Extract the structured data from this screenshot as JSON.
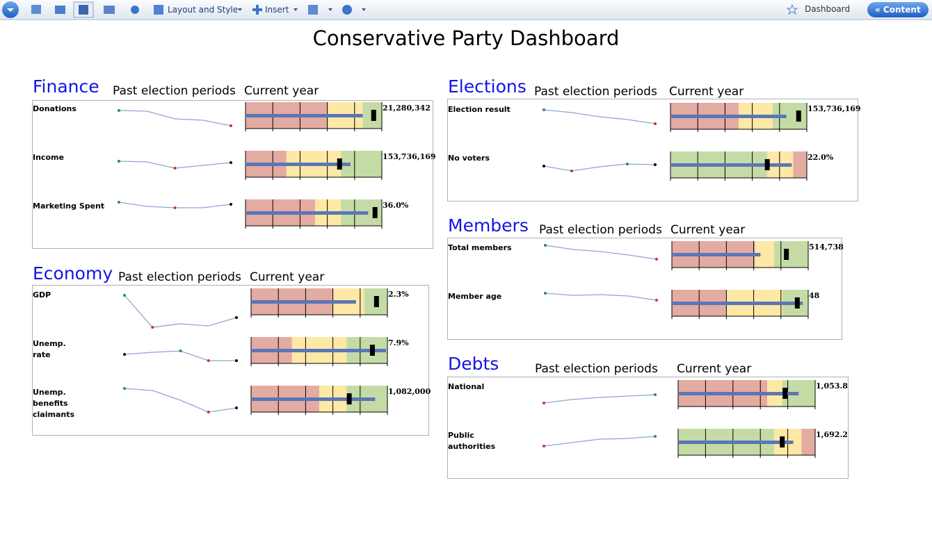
{
  "toolbar": {
    "layout": "Layout and Style",
    "insert": "Insert",
    "dashboard": "Dashboard",
    "content": "« Content"
  },
  "title": "Conservative Party Dashboard",
  "scale": {
    "spark_lim": [
      0,
      60
    ],
    "bullet_lim": [
      0,
      100
    ],
    "bullet_ticks": [
      0,
      20,
      40,
      60,
      80,
      100
    ]
  },
  "panels": [
    {
      "title": "Finance",
      "past": "Past election periods",
      "current": "Current year",
      "rows": [
        {
          "label": "Donations",
          "value": "21,280,342",
          "spark": [
            46,
            45,
            34,
            32,
            24
          ],
          "dots": [
            "#2e8b57",
            null,
            null,
            null,
            "#c0392b"
          ],
          "bands": [
            {
              "to": 60,
              "color": "#e3aba1"
            },
            {
              "to": 86,
              "color": "#fde8a5"
            },
            {
              "to": 100,
              "color": "#c5dba5"
            }
          ],
          "bar": 86,
          "target": 94
        },
        {
          "label": "Income",
          "value": "153,736,169",
          "spark": [
            43,
            42,
            33,
            37,
            41
          ],
          "dots": [
            "#2e8b57",
            null,
            "#c0392b",
            null,
            "#000000"
          ],
          "bands": [
            {
              "to": 30,
              "color": "#e3aba1"
            },
            {
              "to": 70,
              "color": "#fde8a5"
            },
            {
              "to": 100,
              "color": "#c5dba5"
            }
          ],
          "bar": 77,
          "target": 69
        },
        {
          "label": "Marketing Spent",
          "value": "36.0%",
          "spark": [
            54,
            48,
            46,
            46,
            51
          ],
          "dots": [
            "#2e8b57",
            null,
            "#c0392b",
            null,
            "#000000"
          ],
          "bands": [
            {
              "to": 51,
              "color": "#e3aba1"
            },
            {
              "to": 70,
              "color": "#fde8a5"
            },
            {
              "to": 100,
              "color": "#c5dba5"
            }
          ],
          "bar": 90,
          "target": 95
        }
      ]
    },
    {
      "title": "Economy",
      "past": "Past election periods",
      "current": "Current year",
      "rows": [
        {
          "label": "GDP",
          "value": "2.3%",
          "spark": [
            48,
            2,
            7,
            4,
            16
          ],
          "dots": [
            "#2e8b57",
            "#c0392b",
            null,
            null,
            "#000000"
          ],
          "bands": [
            {
              "to": 60,
              "color": "#e3aba1"
            },
            {
              "to": 83,
              "color": "#fde8a5"
            },
            {
              "to": 100,
              "color": "#c5dba5"
            }
          ],
          "bar": 77,
          "target": 92
        },
        {
          "label": "Unemp.\nrate",
          "value": "7.9%",
          "spark": [
            33,
            36,
            38,
            24,
            24
          ],
          "dots": [
            "#000000",
            null,
            "#2e8b57",
            "#c0392b",
            "#000000"
          ],
          "bands": [
            {
              "to": 30,
              "color": "#e3aba1"
            },
            {
              "to": 70,
              "color": "#fde8a5"
            },
            {
              "to": 100,
              "color": "#c5dba5"
            }
          ],
          "bar": 99,
          "target": 89
        },
        {
          "label": "Unemp.\nbenefits\nclaimants",
          "value": "1,082,000",
          "spark": [
            54,
            51,
            37,
            20,
            26
          ],
          "dots": [
            "#2e8b57",
            null,
            null,
            "#c0392b",
            "#000000"
          ],
          "bands": [
            {
              "to": 50,
              "color": "#e3aba1"
            },
            {
              "to": 70,
              "color": "#fde8a5"
            },
            {
              "to": 100,
              "color": "#c5dba5"
            }
          ],
          "bar": 91,
          "target": 72
        }
      ]
    },
    {
      "title": "Elections",
      "past": "Past election periods",
      "current": "Current year",
      "rows": [
        {
          "label": "Election result",
          "value": "153,736,169",
          "spark": [
            48,
            44,
            38,
            34,
            28
          ],
          "dots": [
            "#2e8b57",
            null,
            null,
            null,
            "#c0392b"
          ],
          "bands": [
            {
              "to": 50,
              "color": "#e3aba1"
            },
            {
              "to": 75,
              "color": "#fde8a5"
            },
            {
              "to": 100,
              "color": "#c5dba5"
            }
          ],
          "bar": 85,
          "target": 94
        },
        {
          "label": "No voters",
          "value": "22.0%",
          "spark": [
            37,
            30,
            36,
            40,
            39
          ],
          "dots": [
            "#000000",
            "#c0392b",
            null,
            "#2e8b57",
            "#000000"
          ],
          "bands": [
            {
              "to": 71,
              "color": "#c5dba5"
            },
            {
              "to": 90,
              "color": "#fde8a5"
            },
            {
              "to": 100,
              "color": "#e3aba1"
            }
          ],
          "bar": 89,
          "target": 71
        }
      ]
    },
    {
      "title": "Members",
      "past": "Past election periods",
      "current": "Current year",
      "rows": [
        {
          "label": "Total members",
          "value": "514,738",
          "spark": [
            52,
            46,
            43,
            38,
            32
          ],
          "dots": [
            "#2e8b57",
            null,
            null,
            null,
            "#c0392b"
          ],
          "bands": [
            {
              "to": 61,
              "color": "#e3aba1"
            },
            {
              "to": 75,
              "color": "#fde8a5"
            },
            {
              "to": 100,
              "color": "#c5dba5"
            }
          ],
          "bar": 65,
          "target": 84
        },
        {
          "label": "Member age",
          "value": "48",
          "spark": [
            53,
            50,
            51,
            49,
            43
          ],
          "dots": [
            "#2e8b57",
            null,
            null,
            null,
            "#c0392b"
          ],
          "bands": [
            {
              "to": 40,
              "color": "#e3aba1"
            },
            {
              "to": 81,
              "color": "#fde8a5"
            },
            {
              "to": 100,
              "color": "#c5dba5"
            }
          ],
          "bar": 96,
          "target": 92
        }
      ]
    },
    {
      "title": "Debts",
      "past": "Past election periods",
      "current": "Current year",
      "rows": [
        {
          "label": "National",
          "value": "1,053.8",
          "spark": [
            25,
            30,
            33,
            35,
            37
          ],
          "dots": [
            "#c0392b",
            null,
            null,
            null,
            "#2e8b57"
          ],
          "bands": [
            {
              "to": 65,
              "color": "#e3aba1"
            },
            {
              "to": 76,
              "color": "#fde8a5"
            },
            {
              "to": 100,
              "color": "#c5dba5"
            }
          ],
          "bar": 88,
          "target": 78
        },
        {
          "label": "Public\nauthorities",
          "value": "1,692.2",
          "spark": [
            33,
            38,
            43,
            44,
            47
          ],
          "dots": [
            "#c0392b",
            null,
            null,
            null,
            "#2e8b57"
          ],
          "bands": [
            {
              "to": 70,
              "color": "#c5dba5"
            },
            {
              "to": 90,
              "color": "#fde8a5"
            },
            {
              "to": 100,
              "color": "#e3aba1"
            }
          ],
          "bar": 84,
          "target": 76
        }
      ]
    }
  ]
}
